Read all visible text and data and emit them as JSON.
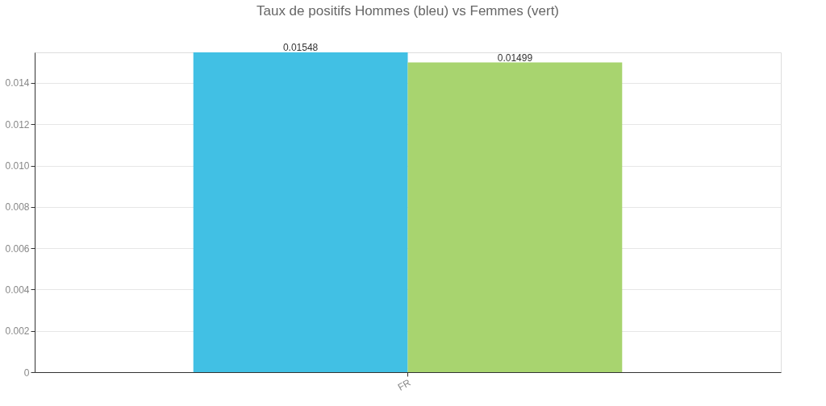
{
  "chart_data": {
    "type": "bar",
    "title": "Taux de positifs Hommes (bleu) vs Femmes (vert)",
    "categories": [
      "FR"
    ],
    "series": [
      {
        "color": "#41c0e4",
        "values": [
          0.01548
        ]
      },
      {
        "color": "#a8d46f",
        "values": [
          0.01499
        ]
      }
    ],
    "ylim": [
      0,
      0.01548
    ],
    "yticks": [
      0,
      0.002,
      0.004,
      0.006,
      0.008,
      {
        "value": 0.01,
        "label": "0.010"
      },
      0.012,
      0.014
    ],
    "grid": "y",
    "legend": false,
    "data_labels": true
  }
}
